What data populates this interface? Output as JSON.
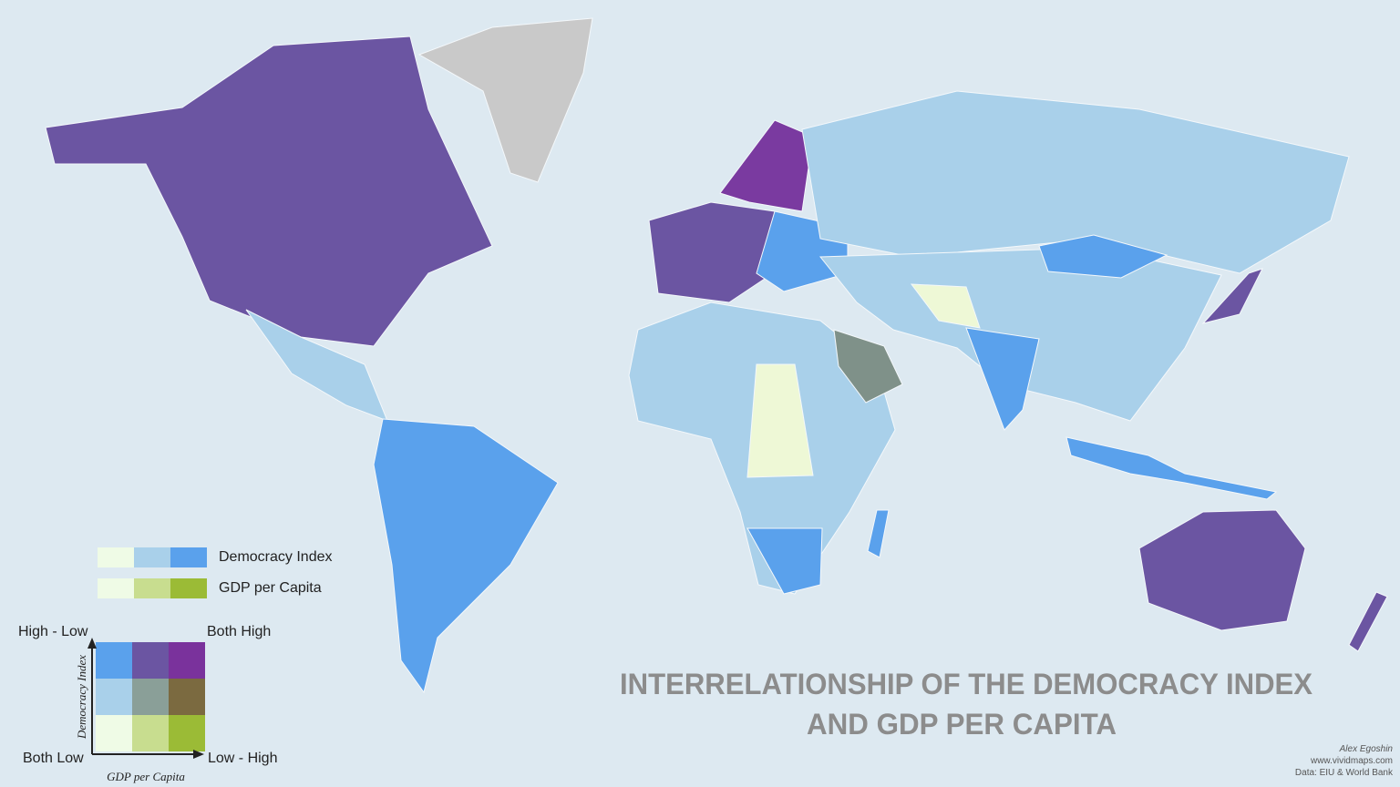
{
  "title": {
    "line1": "INTERRELATIONSHIP OF THE DEMOCRACY INDEX",
    "line2": "AND GDP PER CAPITA"
  },
  "legend": {
    "rows": [
      {
        "label": "Democracy Index"
      },
      {
        "label": "GDP per Capita"
      }
    ],
    "corners": {
      "top_left": "High - Low",
      "top_right": "Both High",
      "bottom_left": "Both Low",
      "bottom_right": "Low - High"
    },
    "y_axis": "Democracy Index",
    "x_axis": "GDP per Capita"
  },
  "credits": {
    "author": "Alex Egoshin",
    "site": "www.vividmaps.com",
    "source": "Data: EIU & World Bank"
  }
}
